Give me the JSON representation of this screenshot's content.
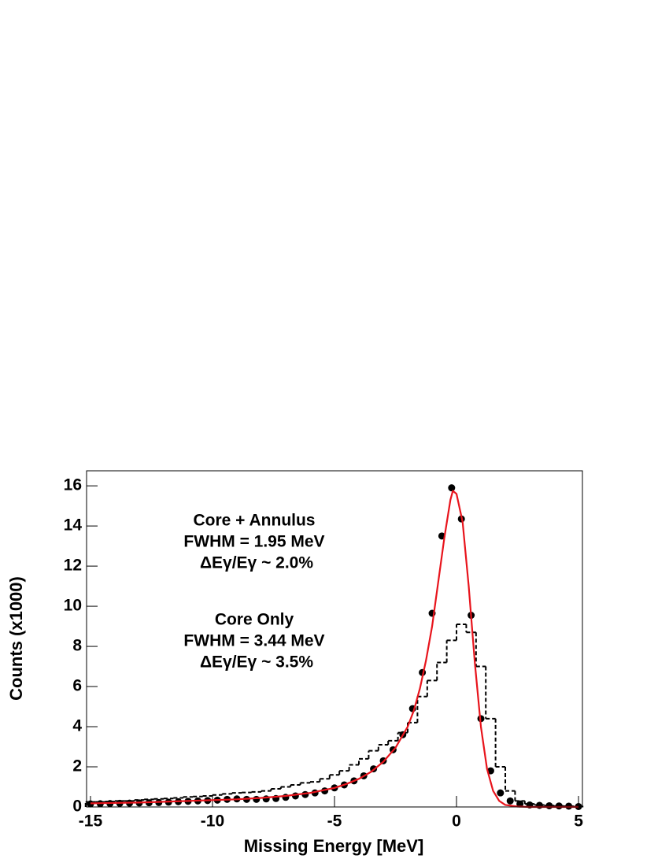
{
  "chart_data": {
    "type": "histogram",
    "xlabel": "Missing Energy [MeV]",
    "ylabel": "Counts (x1000)",
    "annotations": [
      "Core + Annulus",
      "FWHM = 1.95 MeV",
      "ΔEγ/Eγ ~ 2.0%",
      "Core Only",
      "FWHM = 3.44 MeV",
      "ΔEγ/Eγ ~ 3.5%"
    ],
    "xlim": [
      -15.16,
      5.16
    ],
    "ylim": [
      0,
      16.75
    ],
    "xticks": [
      -15,
      -10,
      -5,
      0,
      5
    ],
    "yticks": [
      0,
      2,
      4,
      6,
      8,
      10,
      12,
      14,
      16
    ],
    "series": [
      {
        "type": "histogram",
        "color": "#000000",
        "dashed": true,
        "bins": [
          -15.2,
          -14.8,
          -14.4,
          -14,
          -13.6,
          -13.2,
          -12.8,
          -12.4,
          -12,
          -11.6,
          -11.2,
          -10.8,
          -10.4,
          -10,
          -9.6,
          -9.2,
          -8.8,
          -8.4,
          -8,
          -7.6,
          -7.2,
          -6.8,
          -6.4,
          -6,
          -5.6,
          -5.2,
          -4.8,
          -4.4,
          -4,
          -3.6,
          -3.2,
          -2.8,
          -2.4,
          -2,
          -1.6,
          -1.2,
          -0.8,
          -0.4,
          0,
          0.4,
          0.8,
          1.2,
          1.6,
          2,
          2.4,
          2.8,
          3.2,
          3.6,
          4,
          4.4,
          4.8,
          5.2
        ],
        "values": [
          0.25,
          0.25,
          0.27,
          0.3,
          0.3,
          0.35,
          0.38,
          0.4,
          0.42,
          0.45,
          0.5,
          0.52,
          0.55,
          0.6,
          0.65,
          0.7,
          0.72,
          0.75,
          0.8,
          0.9,
          1.0,
          1.1,
          1.2,
          1.25,
          1.4,
          1.6,
          1.8,
          2.1,
          2.4,
          2.8,
          3.1,
          3.3,
          3.7,
          4.2,
          5.5,
          6.3,
          7.2,
          8.3,
          9.1,
          8.7,
          7.0,
          4.4,
          2.0,
          0.8,
          0.3,
          0.15,
          0.1,
          0.07,
          0.05,
          0.04,
          0.02
        ]
      },
      {
        "type": "scatter",
        "color": "#000000",
        "x": [
          -15,
          -14.6,
          -14.2,
          -13.8,
          -13.4,
          -13,
          -12.6,
          -12.2,
          -11.8,
          -11.4,
          -11,
          -10.6,
          -10.2,
          -9.8,
          -9.4,
          -9,
          -8.6,
          -8.2,
          -7.8,
          -7.4,
          -7,
          -6.6,
          -6.2,
          -5.8,
          -5.4,
          -5,
          -4.6,
          -4.2,
          -3.8,
          -3.4,
          -3,
          -2.6,
          -2.2,
          -1.8,
          -1.4,
          -1,
          -0.6,
          -0.2,
          0.2,
          0.6,
          1,
          1.4,
          1.8,
          2.2,
          2.6,
          3,
          3.4,
          3.8,
          4.2,
          4.6,
          5
        ],
        "values": [
          0.15,
          0.16,
          0.17,
          0.18,
          0.19,
          0.2,
          0.21,
          0.22,
          0.24,
          0.26,
          0.28,
          0.3,
          0.32,
          0.34,
          0.38,
          0.4,
          0.38,
          0.38,
          0.4,
          0.42,
          0.48,
          0.55,
          0.62,
          0.7,
          0.8,
          0.95,
          1.1,
          1.3,
          1.55,
          1.9,
          2.3,
          2.85,
          3.6,
          4.9,
          6.7,
          9.65,
          13.5,
          15.9,
          14.35,
          9.55,
          4.4,
          1.8,
          0.7,
          0.3,
          0.15,
          0.1,
          0.08,
          0.06,
          0.05,
          0.04,
          0.02
        ]
      },
      {
        "type": "line",
        "color": "#e8141c",
        "x": [
          -15,
          -13,
          -11,
          -9,
          -8,
          -7,
          -6,
          -5,
          -4.5,
          -4,
          -3.5,
          -3,
          -2.5,
          -2,
          -1.75,
          -1.5,
          -1.25,
          -1,
          -0.75,
          -0.5,
          -0.25,
          -0.15,
          0,
          0.25,
          0.5,
          0.75,
          1,
          1.25,
          1.5,
          1.75,
          2,
          2.5,
          3,
          5
        ],
        "values": [
          0.18,
          0.22,
          0.3,
          0.38,
          0.45,
          0.55,
          0.7,
          0.95,
          1.15,
          1.4,
          1.75,
          2.25,
          2.95,
          4.0,
          4.8,
          5.9,
          7.3,
          9.0,
          11.2,
          13.4,
          15.3,
          15.75,
          15.6,
          14.2,
          11.0,
          7.2,
          4.0,
          1.9,
          0.8,
          0.3,
          0.1,
          0.02,
          0,
          0
        ]
      }
    ]
  }
}
